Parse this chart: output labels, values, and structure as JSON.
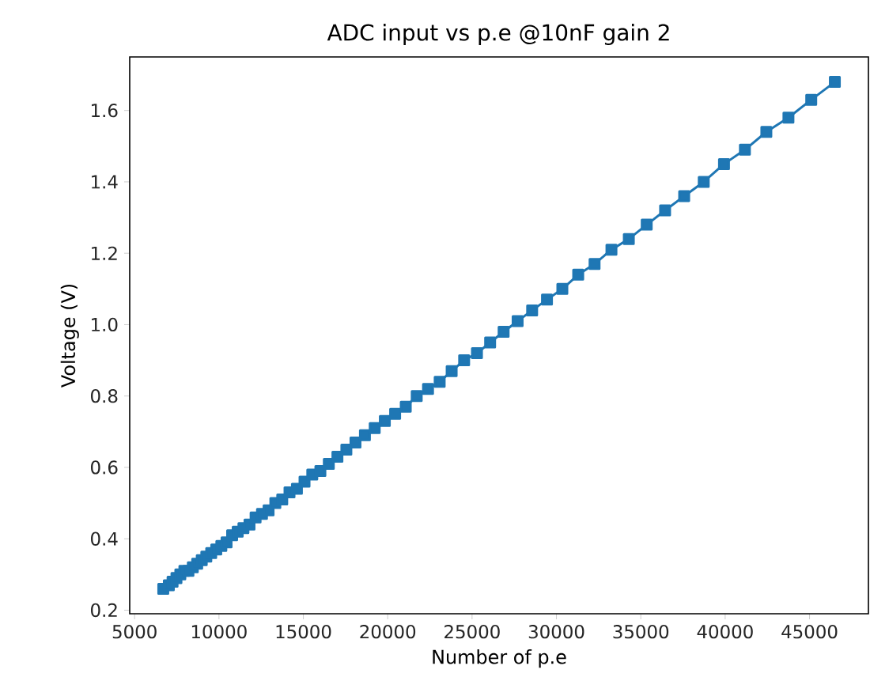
{
  "chart_data": {
    "type": "line",
    "title": "ADC input vs p.e @10nF gain 2",
    "xlabel": "Number of p.e",
    "ylabel": "Voltage (V)",
    "x": [
      6700,
      7030,
      7250,
      7480,
      7710,
      7950,
      8190,
      8450,
      8710,
      8980,
      9250,
      9540,
      9840,
      10140,
      10450,
      10780,
      11110,
      11450,
      11810,
      12170,
      12550,
      12940,
      13340,
      13750,
      14180,
      14620,
      15070,
      15530,
      16010,
      16510,
      17020,
      17550,
      18090,
      18650,
      19230,
      19830,
      20440,
      21070,
      21720,
      22390,
      23080,
      23790,
      24530,
      25290,
      26070,
      26870,
      27700,
      28560,
      29440,
      30350,
      31290,
      32260,
      33260,
      34290,
      35350,
      36440,
      37570,
      38730,
      39930,
      41170,
      42440,
      43750,
      45100,
      46500
    ],
    "series": [
      {
        "color": "#1f77b4",
        "values": [
          0.26,
          0.27,
          0.28,
          0.29,
          0.3,
          0.31,
          0.31,
          0.32,
          0.33,
          0.34,
          0.35,
          0.36,
          0.37,
          0.38,
          0.39,
          0.41,
          0.42,
          0.43,
          0.44,
          0.46,
          0.47,
          0.48,
          0.5,
          0.51,
          0.53,
          0.54,
          0.56,
          0.58,
          0.59,
          0.61,
          0.63,
          0.65,
          0.67,
          0.69,
          0.71,
          0.73,
          0.75,
          0.77,
          0.8,
          0.82,
          0.84,
          0.87,
          0.9,
          0.92,
          0.95,
          0.98,
          1.01,
          1.04,
          1.07,
          1.1,
          1.14,
          1.17,
          1.21,
          1.24,
          1.28,
          1.32,
          1.36,
          1.4,
          1.45,
          1.49,
          1.54,
          1.58,
          1.63,
          1.68
        ]
      }
    ],
    "marker": "square",
    "line_style": "solid",
    "xlim": [
      4710,
      48490
    ],
    "ylim": [
      0.19,
      1.75
    ],
    "xticks": [
      5000,
      10000,
      15000,
      20000,
      25000,
      30000,
      35000,
      40000,
      45000
    ],
    "yticks": [
      0.2,
      0.4,
      0.6,
      0.8,
      {
        "value": 1.0,
        "label": "1.0"
      },
      1.2,
      1.4,
      1.6
    ]
  }
}
